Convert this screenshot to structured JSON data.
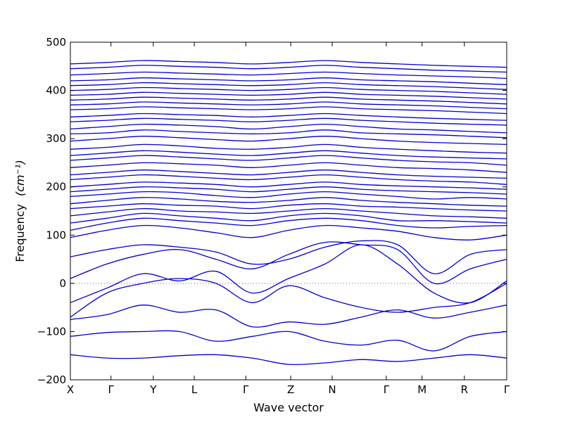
{
  "chart_data": {
    "type": "line",
    "xlabel": "Wave vector",
    "ylabel": "Frequency",
    "ylabel_unit": "(cm⁻¹)",
    "ylim": [
      -200,
      500
    ],
    "yticks": [
      -200,
      -100,
      0,
      100,
      200,
      300,
      400,
      500
    ],
    "zero_reference_line": true,
    "grid": false,
    "line_color": "#0000cc",
    "reference_line_color": "#666666",
    "high_symmetry_points": [
      {
        "label": "X",
        "x": 0.0
      },
      {
        "label": "Γ",
        "x": 0.093
      },
      {
        "label": "Y",
        "x": 0.19
      },
      {
        "label": "L",
        "x": 0.284
      },
      {
        "label": "Γ",
        "x": 0.402
      },
      {
        "label": "Z",
        "x": 0.505
      },
      {
        "label": "N",
        "x": 0.6
      },
      {
        "label": "Γ",
        "x": 0.724
      },
      {
        "label": "M",
        "x": 0.806
      },
      {
        "label": "R",
        "x": 0.903
      },
      {
        "label": "Γ",
        "x": 1.0
      }
    ],
    "series": [
      {
        "values": [
          -148,
          -155,
          -155,
          -150,
          -148,
          -155,
          -168,
          -165,
          -158,
          -162,
          -155,
          -148,
          -155
        ]
      },
      {
        "values": [
          -110,
          -102,
          -100,
          -100,
          -120,
          -110,
          -100,
          -120,
          -128,
          -118,
          -140,
          -110,
          -100
        ]
      },
      {
        "values": [
          -75,
          -65,
          -45,
          -60,
          -55,
          -90,
          -80,
          -85,
          -70,
          -55,
          -72,
          -60,
          -45
        ]
      },
      {
        "values": [
          -70,
          -20,
          0,
          10,
          0,
          -40,
          -5,
          -30,
          -50,
          -60,
          -50,
          -40,
          0
        ]
      },
      {
        "values": [
          -40,
          -10,
          20,
          5,
          25,
          -20,
          10,
          40,
          80,
          40,
          -20,
          -40,
          5
        ]
      },
      {
        "values": [
          10,
          40,
          60,
          70,
          50,
          30,
          60,
          85,
          80,
          70,
          0,
          30,
          50
        ]
      },
      {
        "values": [
          55,
          70,
          80,
          75,
          65,
          40,
          50,
          75,
          88,
          80,
          20,
          60,
          70
        ]
      },
      {
        "values": [
          95,
          110,
          120,
          115,
          105,
          95,
          110,
          120,
          115,
          108,
          95,
          90,
          100
        ]
      },
      {
        "values": [
          110,
          125,
          135,
          130,
          125,
          120,
          130,
          135,
          130,
          120,
          115,
          118,
          120
        ]
      },
      {
        "values": [
          125,
          135,
          145,
          140,
          135,
          130,
          140,
          145,
          140,
          130,
          130,
          128,
          125
        ]
      },
      {
        "values": [
          140,
          148,
          155,
          150,
          148,
          145,
          150,
          155,
          150,
          145,
          140,
          138,
          135
        ]
      },
      {
        "values": [
          155,
          160,
          165,
          162,
          160,
          155,
          162,
          165,
          160,
          158,
          155,
          152,
          150
        ]
      },
      {
        "values": [
          165,
          172,
          178,
          175,
          170,
          168,
          172,
          178,
          172,
          168,
          165,
          162,
          160
        ]
      },
      {
        "values": [
          180,
          185,
          190,
          188,
          182,
          178,
          185,
          190,
          185,
          180,
          175,
          178,
          175
        ]
      },
      {
        "values": [
          190,
          195,
          200,
          198,
          195,
          190,
          195,
          200,
          195,
          192,
          190,
          188,
          185
        ]
      },
      {
        "values": [
          200,
          205,
          210,
          208,
          205,
          200,
          205,
          210,
          205,
          202,
          200,
          198,
          195
        ]
      },
      {
        "values": [
          215,
          220,
          225,
          222,
          218,
          215,
          220,
          225,
          220,
          215,
          212,
          210,
          205
        ]
      },
      {
        "values": [
          225,
          230,
          235,
          232,
          228,
          225,
          230,
          235,
          230,
          225,
          222,
          220,
          218
        ]
      },
      {
        "values": [
          240,
          245,
          250,
          248,
          245,
          240,
          245,
          250,
          245,
          240,
          238,
          235,
          230
        ]
      },
      {
        "values": [
          255,
          260,
          265,
          262,
          258,
          255,
          260,
          265,
          260,
          255,
          252,
          250,
          245
        ]
      },
      {
        "values": [
          265,
          270,
          275,
          272,
          268,
          265,
          270,
          275,
          270,
          265,
          262,
          260,
          258
        ]
      },
      {
        "values": [
          278,
          282,
          288,
          285,
          280,
          278,
          282,
          288,
          282,
          278,
          275,
          272,
          270
        ]
      },
      {
        "values": [
          295,
          300,
          305,
          302,
          298,
          295,
          300,
          305,
          300,
          295,
          292,
          290,
          288
        ]
      },
      {
        "values": [
          310,
          312,
          318,
          315,
          312,
          310,
          312,
          318,
          312,
          310,
          308,
          305,
          302
        ]
      },
      {
        "values": [
          320,
          325,
          330,
          328,
          325,
          320,
          325,
          330,
          325,
          320,
          318,
          315,
          312
        ]
      },
      {
        "values": [
          335,
          338,
          342,
          340,
          338,
          335,
          338,
          342,
          338,
          335,
          332,
          330,
          328
        ]
      },
      {
        "values": [
          345,
          348,
          352,
          350,
          348,
          345,
          348,
          352,
          348,
          345,
          342,
          340,
          338
        ]
      },
      {
        "values": [
          360,
          362,
          366,
          364,
          362,
          360,
          362,
          366,
          362,
          360,
          358,
          355,
          352
        ]
      },
      {
        "values": [
          370,
          372,
          376,
          374,
          372,
          370,
          372,
          376,
          372,
          370,
          368,
          365,
          362
        ]
      },
      {
        "values": [
          380,
          382,
          386,
          384,
          382,
          380,
          382,
          386,
          382,
          380,
          378,
          375,
          372
        ]
      },
      {
        "values": [
          390,
          392,
          396,
          394,
          392,
          390,
          392,
          396,
          392,
          390,
          388,
          385,
          382
        ]
      },
      {
        "values": [
          400,
          402,
          406,
          404,
          402,
          400,
          402,
          406,
          402,
          400,
          398,
          395,
          392
        ]
      },
      {
        "values": [
          410,
          412,
          416,
          414,
          412,
          410,
          412,
          416,
          412,
          410,
          408,
          405,
          402
        ]
      },
      {
        "values": [
          420,
          422,
          426,
          424,
          422,
          420,
          422,
          426,
          422,
          420,
          418,
          415,
          412
        ]
      },
      {
        "values": [
          432,
          435,
          438,
          436,
          434,
          432,
          435,
          438,
          435,
          432,
          430,
          428,
          425
        ]
      },
      {
        "values": [
          445,
          448,
          452,
          450,
          448,
          445,
          448,
          452,
          448,
          445,
          442,
          440,
          438
        ]
      },
      {
        "values": [
          455,
          458,
          462,
          460,
          458,
          455,
          458,
          462,
          458,
          455,
          452,
          450,
          448
        ]
      }
    ]
  }
}
